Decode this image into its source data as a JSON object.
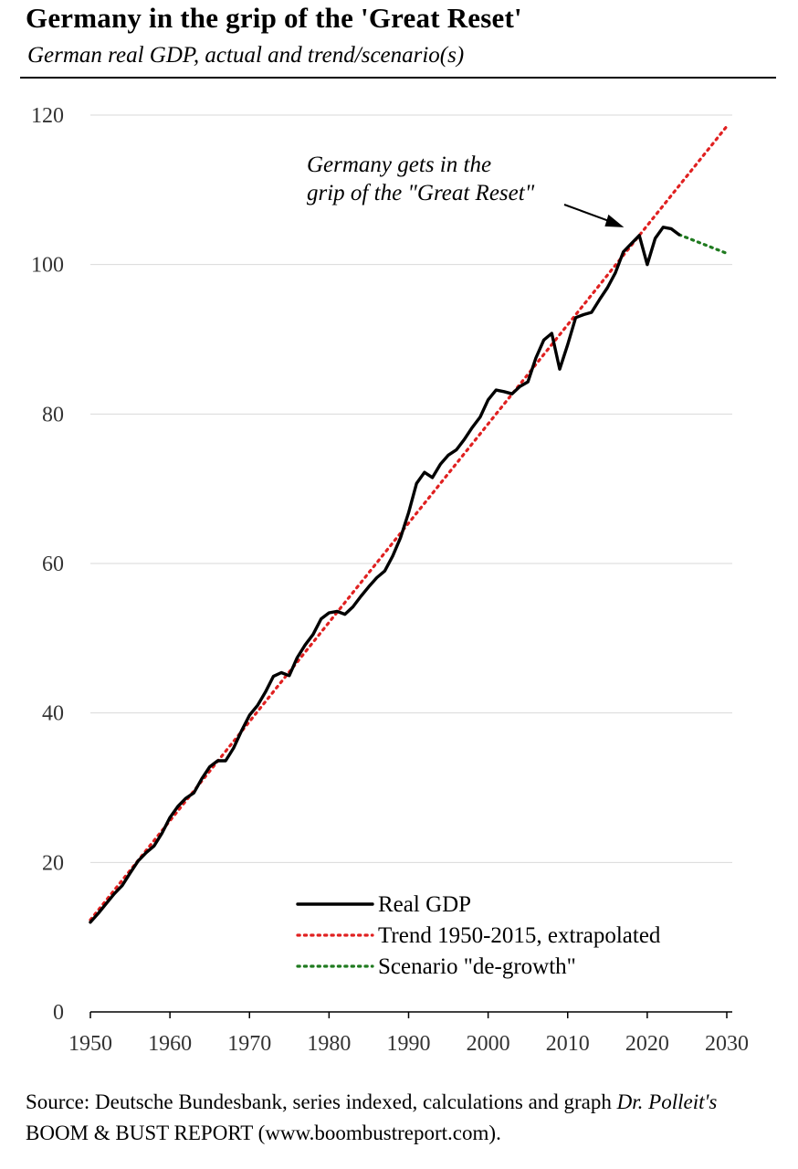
{
  "header": {
    "title": "Germany in the grip of the 'Great Reset'",
    "subtitle": "German real GDP, actual and trend/scenario(s)"
  },
  "footer": {
    "source_part1": "Source: Deutsche Bundesbank, series indexed, calculations and graph ",
    "source_italic": "Dr. Polleit's",
    "source_part2": " BOOM & BUST REPORT (www.boombustreport.com)."
  },
  "chart_data": {
    "type": "line",
    "title": "Germany in the grip of the 'Great Reset'",
    "subtitle": "German real GDP, actual and trend/scenario(s)",
    "xlabel": "",
    "ylabel": "",
    "xlim": [
      1950,
      2030
    ],
    "ylim": [
      0,
      120
    ],
    "x_ticks": [
      1950,
      1960,
      1970,
      1980,
      1990,
      2000,
      2010,
      2020,
      2030
    ],
    "y_ticks": [
      0,
      20,
      40,
      60,
      80,
      100,
      120
    ],
    "grid": "horizontal",
    "legend_position": "bottom-center",
    "annotation": {
      "lines": [
        "Germany gets in the",
        "grip of the \"Great Reset\""
      ],
      "points_to": [
        2019.6,
        104.5
      ]
    },
    "series": [
      {
        "name": "Real GDP",
        "style": "solid",
        "color": "#000000",
        "x": [
          1950,
          1951,
          1952,
          1953,
          1954,
          1955,
          1956,
          1957,
          1958,
          1959,
          1960,
          1961,
          1962,
          1963,
          1964,
          1965,
          1966,
          1967,
          1968,
          1969,
          1970,
          1971,
          1972,
          1973,
          1974,
          1975,
          1976,
          1977,
          1978,
          1979,
          1980,
          1981,
          1982,
          1983,
          1984,
          1985,
          1986,
          1987,
          1988,
          1989,
          1990,
          1991,
          1992,
          1993,
          1994,
          1995,
          1996,
          1997,
          1998,
          1999,
          2000,
          2001,
          2002,
          2003,
          2004,
          2005,
          2006,
          2007,
          2008,
          2009,
          2010,
          2011,
          2012,
          2013,
          2014,
          2015,
          2016,
          2017,
          2018,
          2019,
          2020,
          2021,
          2022,
          2023,
          2024
        ],
        "values": [
          12.0,
          13.2,
          14.5,
          15.8,
          16.9,
          18.6,
          20.2,
          21.3,
          22.2,
          23.9,
          26.0,
          27.5,
          28.6,
          29.3,
          31.2,
          32.8,
          33.6,
          33.6,
          35.3,
          37.6,
          39.7,
          41.0,
          42.8,
          44.9,
          45.4,
          45.0,
          47.4,
          49.1,
          50.5,
          52.6,
          53.4,
          53.6,
          53.2,
          54.2,
          55.6,
          56.9,
          58.1,
          59.0,
          61.0,
          63.5,
          66.8,
          70.7,
          72.2,
          71.5,
          73.3,
          74.5,
          75.2,
          76.6,
          78.2,
          79.6,
          81.9,
          83.2,
          83.0,
          82.7,
          83.7,
          84.3,
          87.5,
          89.9,
          90.8,
          86.0,
          89.3,
          92.9,
          93.3,
          93.6,
          95.3,
          96.9,
          98.9,
          101.7,
          102.8,
          103.9,
          100.0,
          103.5,
          105.0,
          104.8,
          104.0
        ]
      },
      {
        "name": "Trend 1950-2015, extrapolated",
        "style": "dotted",
        "color": "#e02020",
        "x": [
          1950,
          2030
        ],
        "values": [
          12.3,
          118.5
        ]
      },
      {
        "name": "Scenario \"de-growth\"",
        "style": "dotted",
        "color": "#1f7a1f",
        "x": [
          2024,
          2030
        ],
        "values": [
          104.0,
          101.5
        ]
      }
    ]
  }
}
